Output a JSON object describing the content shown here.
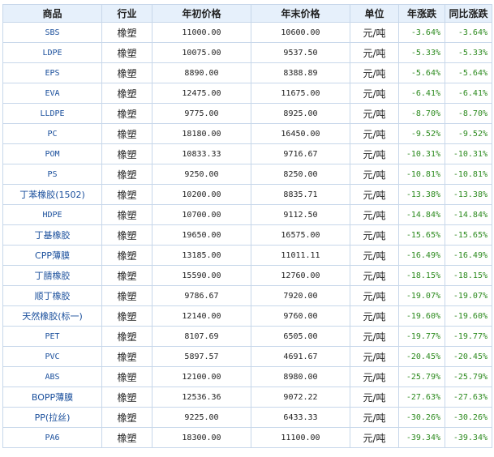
{
  "headers": [
    "商品",
    "行业",
    "年初价格",
    "年末价格",
    "单位",
    "年涨跌",
    "同比涨跌"
  ],
  "colors": {
    "header_bg": "#e6f0fb",
    "border": "#c7d7ea",
    "link": "#1a4f9c",
    "negative": "#2c8a1e"
  },
  "rows": [
    {
      "name": "SBS",
      "industry": "橡塑",
      "start": "11000.00",
      "end": "10600.00",
      "unit": "元/吨",
      "year_change": "-3.64%",
      "yoy_change": "-3.64%"
    },
    {
      "name": "LDPE",
      "industry": "橡塑",
      "start": "10075.00",
      "end": "9537.50",
      "unit": "元/吨",
      "year_change": "-5.33%",
      "yoy_change": "-5.33%"
    },
    {
      "name": "EPS",
      "industry": "橡塑",
      "start": "8890.00",
      "end": "8388.89",
      "unit": "元/吨",
      "year_change": "-5.64%",
      "yoy_change": "-5.64%"
    },
    {
      "name": "EVA",
      "industry": "橡塑",
      "start": "12475.00",
      "end": "11675.00",
      "unit": "元/吨",
      "year_change": "-6.41%",
      "yoy_change": "-6.41%"
    },
    {
      "name": "LLDPE",
      "industry": "橡塑",
      "start": "9775.00",
      "end": "8925.00",
      "unit": "元/吨",
      "year_change": "-8.70%",
      "yoy_change": "-8.70%"
    },
    {
      "name": "PC",
      "industry": "橡塑",
      "start": "18180.00",
      "end": "16450.00",
      "unit": "元/吨",
      "year_change": "-9.52%",
      "yoy_change": "-9.52%"
    },
    {
      "name": "POM",
      "industry": "橡塑",
      "start": "10833.33",
      "end": "9716.67",
      "unit": "元/吨",
      "year_change": "-10.31%",
      "yoy_change": "-10.31%"
    },
    {
      "name": "PS",
      "industry": "橡塑",
      "start": "9250.00",
      "end": "8250.00",
      "unit": "元/吨",
      "year_change": "-10.81%",
      "yoy_change": "-10.81%"
    },
    {
      "name": "丁苯橡胶(1502)",
      "industry": "橡塑",
      "start": "10200.00",
      "end": "8835.71",
      "unit": "元/吨",
      "year_change": "-13.38%",
      "yoy_change": "-13.38%"
    },
    {
      "name": "HDPE",
      "industry": "橡塑",
      "start": "10700.00",
      "end": "9112.50",
      "unit": "元/吨",
      "year_change": "-14.84%",
      "yoy_change": "-14.84%"
    },
    {
      "name": "丁基橡胶",
      "industry": "橡塑",
      "start": "19650.00",
      "end": "16575.00",
      "unit": "元/吨",
      "year_change": "-15.65%",
      "yoy_change": "-15.65%"
    },
    {
      "name": "CPP薄膜",
      "industry": "橡塑",
      "start": "13185.00",
      "end": "11011.11",
      "unit": "元/吨",
      "year_change": "-16.49%",
      "yoy_change": "-16.49%"
    },
    {
      "name": "丁腈橡胶",
      "industry": "橡塑",
      "start": "15590.00",
      "end": "12760.00",
      "unit": "元/吨",
      "year_change": "-18.15%",
      "yoy_change": "-18.15%"
    },
    {
      "name": "顺丁橡胶",
      "industry": "橡塑",
      "start": "9786.67",
      "end": "7920.00",
      "unit": "元/吨",
      "year_change": "-19.07%",
      "yoy_change": "-19.07%"
    },
    {
      "name": "天然橡胶(标一)",
      "industry": "橡塑",
      "start": "12140.00",
      "end": "9760.00",
      "unit": "元/吨",
      "year_change": "-19.60%",
      "yoy_change": "-19.60%"
    },
    {
      "name": "PET",
      "industry": "橡塑",
      "start": "8107.69",
      "end": "6505.00",
      "unit": "元/吨",
      "year_change": "-19.77%",
      "yoy_change": "-19.77%"
    },
    {
      "name": "PVC",
      "industry": "橡塑",
      "start": "5897.57",
      "end": "4691.67",
      "unit": "元/吨",
      "year_change": "-20.45%",
      "yoy_change": "-20.45%"
    },
    {
      "name": "ABS",
      "industry": "橡塑",
      "start": "12100.00",
      "end": "8980.00",
      "unit": "元/吨",
      "year_change": "-25.79%",
      "yoy_change": "-25.79%"
    },
    {
      "name": "BOPP薄膜",
      "industry": "橡塑",
      "start": "12536.36",
      "end": "9072.22",
      "unit": "元/吨",
      "year_change": "-27.63%",
      "yoy_change": "-27.63%"
    },
    {
      "name": "PP(拉丝)",
      "industry": "橡塑",
      "start": "9225.00",
      "end": "6433.33",
      "unit": "元/吨",
      "year_change": "-30.26%",
      "yoy_change": "-30.26%"
    },
    {
      "name": "PA6",
      "industry": "橡塑",
      "start": "18300.00",
      "end": "11100.00",
      "unit": "元/吨",
      "year_change": "-39.34%",
      "yoy_change": "-39.34%"
    }
  ]
}
